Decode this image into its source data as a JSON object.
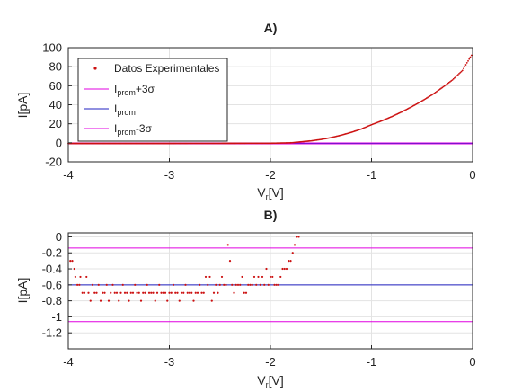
{
  "chart_data": [
    {
      "type": "scatter",
      "title": "A)",
      "xlabel_base": "V",
      "xlabel_sub": "r",
      "xlabel_unit": "[V]",
      "ylabel": "I[pA]",
      "xlim": [
        -4,
        0
      ],
      "ylim": [
        -20,
        100
      ],
      "xticks": [
        -4,
        -3,
        -2,
        -1,
        0
      ],
      "yticks": [
        -20,
        0,
        20,
        40,
        60,
        80,
        100
      ],
      "grid": true,
      "legend_position": "top-left",
      "legend": [
        {
          "label": "Datos Experimentales",
          "marker": "dot",
          "color": "#cc1111"
        },
        {
          "label_base": "I",
          "label_sub": "prom",
          "label_suffix": "+3σ",
          "marker": "line",
          "color": "#e000e0"
        },
        {
          "label_base": "I",
          "label_sub": "prom",
          "label_suffix": "",
          "marker": "line",
          "color": "#2020c0"
        },
        {
          "label_base": "I",
          "label_sub": "prom",
          "label_suffix": "-3σ",
          "marker": "line",
          "color": "#e000e0"
        }
      ],
      "series": [
        {
          "name": "Datos Experimentales",
          "kind": "curve",
          "color": "#cc1111",
          "x": [
            -4.0,
            -3.0,
            -2.5,
            -2.0,
            -1.8,
            -1.7,
            -1.6,
            -1.5,
            -1.4,
            -1.3,
            -1.2,
            -1.1,
            -1.0,
            -0.9,
            -0.8,
            -0.7,
            -0.6,
            -0.5,
            -0.4,
            -0.3,
            -0.2,
            -0.1,
            0.0
          ],
          "y": [
            -0.7,
            -0.7,
            -0.6,
            -0.5,
            0.0,
            1.0,
            2.0,
            3.5,
            5.5,
            8.0,
            11.0,
            14.5,
            19.0,
            23.0,
            27.5,
            32.5,
            38.0,
            44.0,
            50.5,
            58.0,
            66.0,
            76.0,
            94.0
          ]
        },
        {
          "name": "Iprom+3σ",
          "kind": "hline",
          "value": -0.14,
          "color": "#e000e0"
        },
        {
          "name": "Iprom",
          "kind": "hline",
          "value": -0.6,
          "color": "#2020c0"
        },
        {
          "name": "Iprom-3σ",
          "kind": "hline",
          "value": -1.06,
          "color": "#e000e0"
        }
      ]
    },
    {
      "type": "scatter",
      "title": "B)",
      "xlabel_base": "V",
      "xlabel_sub": "r",
      "xlabel_unit": "[V]",
      "ylabel": "I[pA]",
      "xlim": [
        -4,
        0
      ],
      "ylim": [
        -1.4,
        0.05
      ],
      "xticks": [
        -4,
        -3,
        -2,
        -1,
        0
      ],
      "yticks": [
        0,
        -0.2,
        -0.4,
        -0.6,
        -0.8,
        -1,
        -1.2
      ],
      "ytick_labels": [
        "0",
        "-0.2",
        "-0.4",
        "-0.6",
        "-0.8",
        "-1",
        "-1.2"
      ],
      "grid": true,
      "series": [
        {
          "name": "Datos Experimentales",
          "kind": "points",
          "color": "#cc1111",
          "x": [
            -3.98,
            -3.96,
            -3.94,
            -3.93,
            -3.91,
            -3.89,
            -3.88,
            -3.86,
            -3.84,
            -3.82,
            -3.8,
            -3.78,
            -3.76,
            -3.74,
            -3.72,
            -3.7,
            -3.68,
            -3.66,
            -3.64,
            -3.62,
            -3.6,
            -3.58,
            -3.56,
            -3.54,
            -3.52,
            -3.5,
            -3.48,
            -3.46,
            -3.44,
            -3.42,
            -3.4,
            -3.38,
            -3.36,
            -3.34,
            -3.32,
            -3.3,
            -3.28,
            -3.26,
            -3.24,
            -3.22,
            -3.2,
            -3.18,
            -3.16,
            -3.14,
            -3.12,
            -3.1,
            -3.08,
            -3.06,
            -3.04,
            -3.02,
            -3.0,
            -2.98,
            -2.96,
            -2.94,
            -2.92,
            -2.9,
            -2.88,
            -2.86,
            -2.84,
            -2.82,
            -2.8,
            -2.78,
            -2.76,
            -2.74,
            -2.72,
            -2.7,
            -2.68,
            -2.66,
            -2.64,
            -2.62,
            -2.6,
            -2.58,
            -2.56,
            -2.54,
            -2.52,
            -2.5,
            -2.48,
            -2.46,
            -2.44,
            -2.42,
            -2.4,
            -2.38,
            -2.36,
            -2.34,
            -2.32,
            -2.3,
            -2.28,
            -2.26,
            -2.24,
            -2.22,
            -2.2,
            -2.18,
            -2.16,
            -2.14,
            -2.12,
            -2.1,
            -2.08,
            -2.06,
            -2.04,
            -2.02,
            -2.0,
            -1.98,
            -1.96,
            -1.94,
            -1.92,
            -1.9,
            -1.88,
            -1.86,
            -1.84,
            -1.82,
            -1.8,
            -1.78,
            -1.76,
            -1.74,
            -1.72
          ],
          "y": [
            -0.3,
            -0.3,
            -0.4,
            -0.5,
            -0.6,
            -0.6,
            -0.5,
            -0.7,
            -0.7,
            -0.5,
            -0.7,
            -0.8,
            -0.6,
            -0.7,
            -0.7,
            -0.6,
            -0.8,
            -0.7,
            -0.7,
            -0.6,
            -0.8,
            -0.7,
            -0.6,
            -0.7,
            -0.7,
            -0.8,
            -0.7,
            -0.6,
            -0.7,
            -0.7,
            -0.8,
            -0.7,
            -0.7,
            -0.6,
            -0.7,
            -0.7,
            -0.8,
            -0.7,
            -0.7,
            -0.6,
            -0.7,
            -0.7,
            -0.7,
            -0.8,
            -0.7,
            -0.6,
            -0.7,
            -0.7,
            -0.7,
            -0.8,
            -0.7,
            -0.7,
            -0.6,
            -0.7,
            -0.7,
            -0.8,
            -0.7,
            -0.7,
            -0.6,
            -0.7,
            -0.7,
            -0.7,
            -0.8,
            -0.7,
            -0.7,
            -0.6,
            -0.7,
            -0.7,
            -0.5,
            -0.6,
            -0.5,
            -0.8,
            -0.7,
            -0.6,
            -0.7,
            -0.6,
            -0.5,
            -0.6,
            -0.6,
            -0.1,
            -0.3,
            -0.6,
            -0.7,
            -0.6,
            -0.6,
            -0.6,
            -0.5,
            -0.7,
            -0.7,
            -0.6,
            -0.6,
            -0.6,
            -0.5,
            -0.6,
            -0.5,
            -0.6,
            -0.5,
            -0.6,
            -0.4,
            -0.6,
            -0.5,
            -0.5,
            -0.6,
            -0.6,
            -0.6,
            -0.5,
            -0.4,
            -0.4,
            -0.4,
            -0.3,
            -0.3,
            -0.2,
            -0.1,
            0.0,
            0.0
          ]
        },
        {
          "name": "Iprom+3σ",
          "kind": "hline",
          "value": -0.14,
          "color": "#e000e0"
        },
        {
          "name": "Iprom",
          "kind": "hline",
          "value": -0.6,
          "color": "#2020c0"
        },
        {
          "name": "Iprom-3σ",
          "kind": "hline",
          "value": -1.06,
          "color": "#e000e0"
        }
      ]
    }
  ]
}
